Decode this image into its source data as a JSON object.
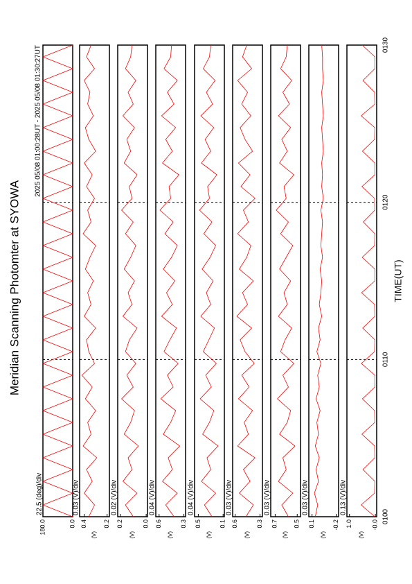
{
  "chart_data": {
    "type": "line",
    "title": "Meridian Scanning Photomter at SYOWA",
    "subtitle": "2025 05/08 01:00:28UT - 2025 05/08 01:30:27UT",
    "xlabel": "TIME(UT)",
    "x": [
      0,
      0.75,
      1.5,
      2.25,
      3,
      3.75,
      4.5,
      5.25,
      6,
      6.75,
      7.5,
      8.25,
      9,
      9.75,
      10.5,
      11.25,
      12,
      12.75,
      13.5,
      14.25,
      15,
      15.75,
      16.5,
      17.25,
      18,
      18.75,
      19.5,
      20.25,
      21,
      21.75,
      22.5,
      23.25,
      24,
      24.75,
      25.5,
      26.25,
      27,
      27.75,
      28.5,
      29.25,
      30
    ],
    "xlim": [
      0,
      30
    ],
    "xticks": [
      {
        "value": 0,
        "label": "0100"
      },
      {
        "value": 10,
        "label": "0110"
      },
      {
        "value": 20,
        "label": "0120"
      },
      {
        "value": 30,
        "label": "0130"
      }
    ],
    "grid": true,
    "panels": [
      {
        "label": "22.5 (deg)/div",
        "color": "#ff0000",
        "ylim": [
          0,
          180
        ],
        "yticks": [
          {
            "value": 0,
            "label": "0.0"
          },
          {
            "value": 180,
            "label": "180.0"
          }
        ],
        "values": [
          0,
          180,
          0,
          180,
          0,
          180,
          0,
          180,
          0,
          180,
          0,
          180,
          0,
          180,
          0,
          180,
          0,
          180,
          0,
          180,
          0,
          180,
          0,
          180,
          0,
          180,
          0,
          180,
          0,
          180,
          0,
          180,
          0,
          180,
          0,
          180,
          0,
          180,
          0,
          180,
          0
        ]
      },
      {
        "label": "0.03 (V)/div",
        "ylabel": "(V)",
        "color": "#ff0000",
        "ylim": [
          0.18,
          0.44
        ],
        "yticks": [
          0.2,
          0.4
        ],
        "values": [
          0.36,
          0.31,
          0.4,
          0.33,
          0.38,
          0.29,
          0.41,
          0.34,
          0.37,
          0.3,
          0.39,
          0.33,
          0.42,
          0.31,
          0.36,
          0.38,
          0.3,
          0.4,
          0.34,
          0.37,
          0.32,
          0.39,
          0.35,
          0.3,
          0.41,
          0.34,
          0.37,
          0.31,
          0.38,
          0.33,
          0.4,
          0.3,
          0.36,
          0.39,
          0.32,
          0.37,
          0.35,
          0.4,
          0.31,
          0.38,
          0.34
        ]
      },
      {
        "label": "0.02 (V)/div",
        "ylabel": "(V)",
        "color": "#ff0000",
        "ylim": [
          -0.01,
          0.22
        ],
        "yticks": [
          {
            "value": 0,
            "label": "0.0"
          },
          0.2
        ],
        "values": [
          0.1,
          0.16,
          0.07,
          0.18,
          0.11,
          0.14,
          0.06,
          0.17,
          0.12,
          0.09,
          0.19,
          0.1,
          0.15,
          0.08,
          0.16,
          0.13,
          0.07,
          0.18,
          0.11,
          0.14,
          0.09,
          0.17,
          0.12,
          0.08,
          0.16,
          0.1,
          0.19,
          0.11,
          0.13,
          0.07,
          0.17,
          0.12,
          0.15,
          0.09,
          0.18,
          0.1,
          0.14,
          0.08,
          0.16,
          0.12,
          0.11
        ]
      },
      {
        "label": "0.04 (V)/div",
        "ylabel": "(V)",
        "color": "#ff0000",
        "ylim": [
          0.28,
          0.64
        ],
        "yticks": [
          0.3,
          0.6
        ],
        "values": [
          0.42,
          0.52,
          0.38,
          0.56,
          0.44,
          0.49,
          0.35,
          0.55,
          0.46,
          0.4,
          0.58,
          0.43,
          0.5,
          0.37,
          0.54,
          0.47,
          0.39,
          0.57,
          0.44,
          0.51,
          0.41,
          0.55,
          0.45,
          0.38,
          0.53,
          0.43,
          0.59,
          0.46,
          0.48,
          0.36,
          0.56,
          0.44,
          0.52,
          0.4,
          0.57,
          0.42,
          0.5,
          0.38,
          0.54,
          0.46,
          0.45
        ]
      },
      {
        "label": "0.04 (V)/div",
        "ylabel": "(V)",
        "color": "#ff0000",
        "ylim": [
          0.08,
          0.56
        ],
        "yticks": [
          0.1,
          0.5
        ],
        "values": [
          0.28,
          0.4,
          0.22,
          0.45,
          0.3,
          0.36,
          0.18,
          0.43,
          0.32,
          0.25,
          0.47,
          0.29,
          0.38,
          0.21,
          0.42,
          0.33,
          0.24,
          0.46,
          0.3,
          0.37,
          0.26,
          0.44,
          0.31,
          0.22,
          0.41,
          0.28,
          0.48,
          0.32,
          0.35,
          0.2,
          0.45,
          0.3,
          0.39,
          0.25,
          0.46,
          0.27,
          0.37,
          0.23,
          0.42,
          0.32,
          0.3
        ]
      },
      {
        "label": "0.03 (V)/div",
        "ylabel": "(V)",
        "color": "#ff0000",
        "ylim": [
          0.27,
          0.63
        ],
        "yticks": [
          0.3,
          0.6
        ],
        "values": [
          0.47,
          0.38,
          0.55,
          0.42,
          0.5,
          0.36,
          0.57,
          0.44,
          0.49,
          0.39,
          0.56,
          0.43,
          0.52,
          0.37,
          0.48,
          0.54,
          0.4,
          0.58,
          0.45,
          0.51,
          0.38,
          0.55,
          0.46,
          0.41,
          0.57,
          0.44,
          0.5,
          0.36,
          0.53,
          0.42,
          0.56,
          0.39,
          0.48,
          0.54,
          0.41,
          0.52,
          0.45,
          0.57,
          0.4,
          0.51,
          0.46
        ]
      },
      {
        "label": "0.03 (V)/div",
        "ylabel": "(V)",
        "color": "#ff0000",
        "ylim": [
          0.47,
          0.74
        ],
        "yticks": [
          0.5,
          0.7
        ],
        "values": [
          0.58,
          0.64,
          0.54,
          0.67,
          0.6,
          0.63,
          0.52,
          0.66,
          0.59,
          0.56,
          0.68,
          0.58,
          0.63,
          0.53,
          0.65,
          0.61,
          0.55,
          0.67,
          0.59,
          0.62,
          0.56,
          0.66,
          0.6,
          0.54,
          0.65,
          0.58,
          0.69,
          0.6,
          0.62,
          0.53,
          0.66,
          0.59,
          0.64,
          0.56,
          0.67,
          0.57,
          0.63,
          0.55,
          0.65,
          0.6,
          0.59
        ]
      },
      {
        "label": "0.03 (V)/div",
        "ylabel": "(V)",
        "color": "#ff0000",
        "ylim": [
          -0.23,
          0.14
        ],
        "yticks": [
          -0.2,
          0.1
        ],
        "values": [
          0.06,
          0.03,
          0.07,
          0.02,
          0.05,
          0.01,
          0.06,
          0.02,
          0.04,
          0.0,
          0.05,
          0.01,
          0.03,
          -0.01,
          0.04,
          0.0,
          0.02,
          -0.02,
          0.01,
          -0.01,
          -0.02,
          0.0,
          -0.03,
          -0.01,
          -0.02,
          -0.03,
          -0.01,
          -0.04,
          -0.02,
          -0.03,
          -0.02,
          -0.04,
          -0.03,
          -0.02,
          -0.04,
          -0.03,
          -0.02,
          -0.04,
          -0.03,
          -0.03,
          -0.02
        ]
      },
      {
        "label": "0.13 (V)/div",
        "ylabel": "(V)",
        "color": "#ff0000",
        "ylim": [
          -0.05,
          1.1
        ],
        "yticks": [
          {
            "value": 0,
            "label": "-0.0"
          },
          {
            "value": 1,
            "label": "1.0"
          }
        ],
        "values": [
          0.02,
          0.55,
          0.03,
          0.02,
          0.48,
          0.02,
          0.03,
          0.52,
          0.02,
          0.03,
          0.5,
          0.02,
          0.02,
          0.54,
          0.03,
          0.02,
          0.49,
          0.02,
          0.03,
          0.53,
          0.02,
          0.02,
          0.51,
          0.03,
          0.02,
          0.47,
          0.02,
          0.03,
          0.52,
          0.02,
          0.02,
          0.5,
          0.03,
          0.02,
          0.55,
          0.02,
          0.03,
          0.48,
          0.02,
          0.02,
          0.51
        ]
      }
    ]
  }
}
